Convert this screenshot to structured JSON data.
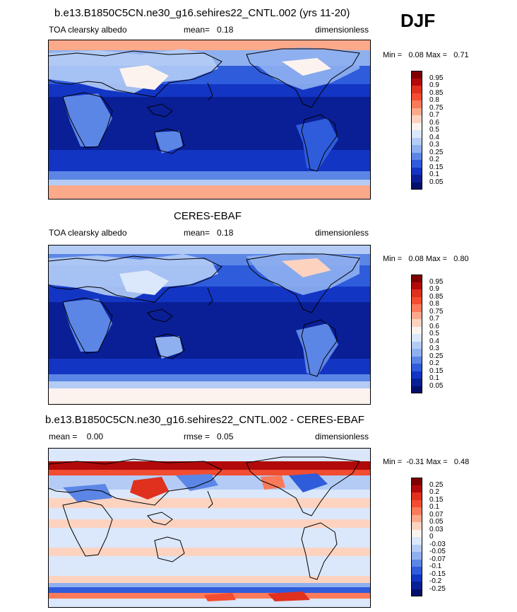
{
  "season": "DJF",
  "panels": [
    {
      "title": "b.e13.B1850C5CN.ne30_g16.sehires22_CNTL.002 (yrs 11-20)",
      "left": "TOA clearsky albedo",
      "middle": "mean=   0.18",
      "right": "dimensionless",
      "minmax": "Min =   0.08 Max =   0.71",
      "levels": [
        "0.95",
        "0.9",
        "0.85",
        "0.8",
        "0.75",
        "0.7",
        "0.6",
        "0.5",
        "0.4",
        "0.3",
        "0.25",
        "0.2",
        "0.15",
        "0.1",
        "0.05"
      ],
      "colors": [
        "#7f0000",
        "#b20a0a",
        "#e0301e",
        "#f24d31",
        "#fa7a5a",
        "#fca98a",
        "#fdd3c0",
        "#fdf3ee",
        "#dbe7fa",
        "#b4ccf5",
        "#8fb0ef",
        "#5c86e6",
        "#2f5cdb",
        "#1335c4",
        "#0a1f96",
        "#030f6b"
      ]
    },
    {
      "title": "CERES-EBAF",
      "left": "TOA clearsky albedo",
      "middle": "mean=   0.18",
      "right": "dimensionless",
      "minmax": "Min =   0.08 Max =   0.80",
      "levels": [
        "0.95",
        "0.9",
        "0.85",
        "0.8",
        "0.75",
        "0.7",
        "0.6",
        "0.5",
        "0.4",
        "0.3",
        "0.25",
        "0.2",
        "0.15",
        "0.1",
        "0.05"
      ],
      "colors": [
        "#7f0000",
        "#b20a0a",
        "#e0301e",
        "#f24d31",
        "#fa7a5a",
        "#fca98a",
        "#fdd3c0",
        "#fdf3ee",
        "#dbe7fa",
        "#b4ccf5",
        "#8fb0ef",
        "#5c86e6",
        "#2f5cdb",
        "#1335c4",
        "#0a1f96",
        "#030f6b"
      ]
    },
    {
      "title": "b.e13.B1850C5CN.ne30_g16.sehires22_CNTL.002 - CERES-EBAF",
      "left": "mean =    0.00",
      "middle": "rmse =   0.05",
      "right": "dimensionless",
      "minmax": "Min =  -0.31 Max =   0.48",
      "levels": [
        "0.25",
        "0.2",
        "0.15",
        "0.1",
        "0.07",
        "0.05",
        "0.03",
        "0",
        "-0.03",
        "-0.05",
        "-0.07",
        "-0.1",
        "-0.15",
        "-0.2",
        "-0.25"
      ],
      "colors": [
        "#7f0000",
        "#b20a0a",
        "#e0301e",
        "#f24d31",
        "#fa7a5a",
        "#fca98a",
        "#fdd3c0",
        "#fdf3ee",
        "#dbe7fa",
        "#b4ccf5",
        "#8fb0ef",
        "#5c86e6",
        "#2f5cdb",
        "#1335c4",
        "#0a1f96",
        "#030f6b"
      ]
    }
  ]
}
